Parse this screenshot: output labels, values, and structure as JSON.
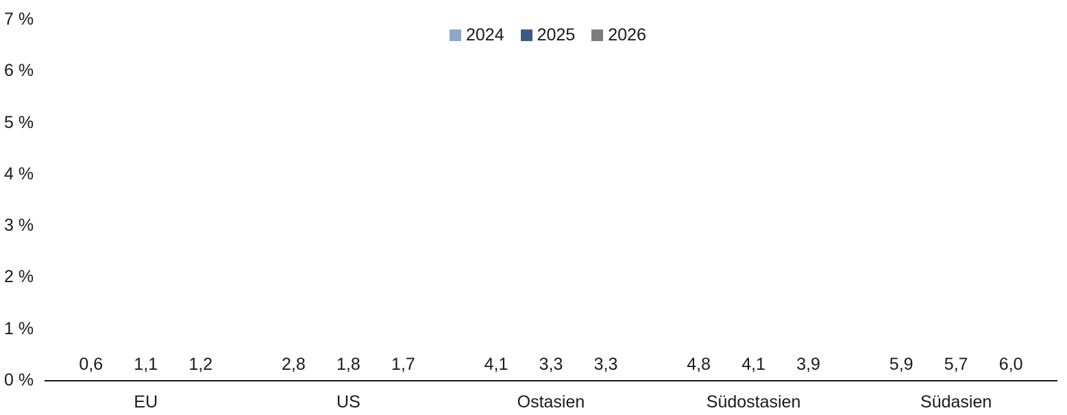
{
  "chart_data": {
    "type": "bar",
    "title": "",
    "xlabel": "",
    "ylabel": "",
    "categories": [
      "EU",
      "US",
      "Ostasien",
      "Südostasien",
      "Südasien"
    ],
    "series": [
      {
        "name": "2024",
        "color": "#8BA7CB",
        "values": [
          0.6,
          2.8,
          4.1,
          4.8,
          5.9
        ],
        "labels": [
          "0,6",
          "2,8",
          "4,1",
          "4,8",
          "5,9"
        ]
      },
      {
        "name": "2025",
        "color": "#3A5C84",
        "values": [
          1.1,
          1.8,
          3.3,
          4.1,
          5.7
        ],
        "labels": [
          "1,1",
          "1,8",
          "3,3",
          "4,1",
          "5,7"
        ]
      },
      {
        "name": "2026",
        "color": "#7C7C7C",
        "values": [
          1.2,
          1.7,
          3.3,
          3.9,
          6.0
        ],
        "labels": [
          "1,2",
          "1,7",
          "3,3",
          "3,9",
          "6,0"
        ]
      }
    ],
    "ylim": [
      0,
      7
    ],
    "y_ticks": [
      "0 %",
      "1 %",
      "2 %",
      "3 %",
      "4 %",
      "5 %",
      "6 %",
      "7 %"
    ],
    "grid": false,
    "legend_position": "top-center",
    "axis_color": "#161616",
    "background_color": "#ffffff",
    "value_label_decimal_separator": ","
  }
}
